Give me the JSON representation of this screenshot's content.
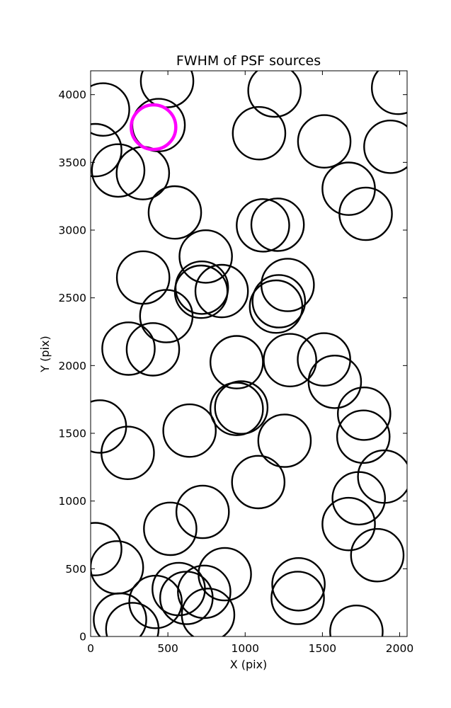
{
  "chart_data": {
    "type": "scatter",
    "title": "FWHM of PSF sources",
    "xlabel": "X (pix)",
    "ylabel": "Y (pix)",
    "xlim": [
      0,
      2048
    ],
    "ylim": [
      0,
      4176
    ],
    "xticks": [
      0,
      500,
      1000,
      1500,
      2000
    ],
    "yticks": [
      0,
      500,
      1000,
      1500,
      2000,
      2500,
      3000,
      3500,
      4000
    ],
    "grid": false,
    "marker": "open circle",
    "circle_radius": 170,
    "colors": {
      "source": "#000000",
      "highlight": "#ff00ff"
    },
    "sources": [
      {
        "x": 80,
        "y": 3890
      },
      {
        "x": 30,
        "y": 3590
      },
      {
        "x": 178,
        "y": 3440
      },
      {
        "x": 338,
        "y": 3420
      },
      {
        "x": 440,
        "y": 3775
      },
      {
        "x": 495,
        "y": 4100
      },
      {
        "x": 545,
        "y": 3130
      },
      {
        "x": 1090,
        "y": 3715
      },
      {
        "x": 1190,
        "y": 4030
      },
      {
        "x": 1512,
        "y": 3655
      },
      {
        "x": 1670,
        "y": 3305
      },
      {
        "x": 1780,
        "y": 3120
      },
      {
        "x": 1940,
        "y": 3615
      },
      {
        "x": 1990,
        "y": 4050
      },
      {
        "x": 1115,
        "y": 3035
      },
      {
        "x": 1210,
        "y": 3040
      },
      {
        "x": 745,
        "y": 2805
      },
      {
        "x": 340,
        "y": 2650
      },
      {
        "x": 720,
        "y": 2575
      },
      {
        "x": 715,
        "y": 2545
      },
      {
        "x": 848,
        "y": 2550
      },
      {
        "x": 490,
        "y": 2365
      },
      {
        "x": 1275,
        "y": 2595
      },
      {
        "x": 1218,
        "y": 2475
      },
      {
        "x": 1200,
        "y": 2435
      },
      {
        "x": 245,
        "y": 2125
      },
      {
        "x": 403,
        "y": 2120
      },
      {
        "x": 945,
        "y": 2025
      },
      {
        "x": 1290,
        "y": 2040
      },
      {
        "x": 1510,
        "y": 2045
      },
      {
        "x": 1580,
        "y": 1880
      },
      {
        "x": 945,
        "y": 1680
      },
      {
        "x": 975,
        "y": 1690
      },
      {
        "x": 60,
        "y": 1550
      },
      {
        "x": 640,
        "y": 1520
      },
      {
        "x": 1255,
        "y": 1445
      },
      {
        "x": 240,
        "y": 1355
      },
      {
        "x": 1770,
        "y": 1645
      },
      {
        "x": 1765,
        "y": 1475
      },
      {
        "x": 1900,
        "y": 1180
      },
      {
        "x": 1735,
        "y": 1020
      },
      {
        "x": 1670,
        "y": 830
      },
      {
        "x": 1085,
        "y": 1140
      },
      {
        "x": 725,
        "y": 920
      },
      {
        "x": 515,
        "y": 795
      },
      {
        "x": 30,
        "y": 645
      },
      {
        "x": 170,
        "y": 510
      },
      {
        "x": 868,
        "y": 460
      },
      {
        "x": 1345,
        "y": 385
      },
      {
        "x": 1340,
        "y": 285
      },
      {
        "x": 1855,
        "y": 600
      },
      {
        "x": 570,
        "y": 350
      },
      {
        "x": 620,
        "y": 285
      },
      {
        "x": 735,
        "y": 330
      },
      {
        "x": 420,
        "y": 255
      },
      {
        "x": 760,
        "y": 160
      },
      {
        "x": 190,
        "y": 125
      },
      {
        "x": 270,
        "y": 55
      },
      {
        "x": 1720,
        "y": 35
      }
    ],
    "highlight": [
      {
        "x": 407,
        "y": 3760
      }
    ]
  }
}
